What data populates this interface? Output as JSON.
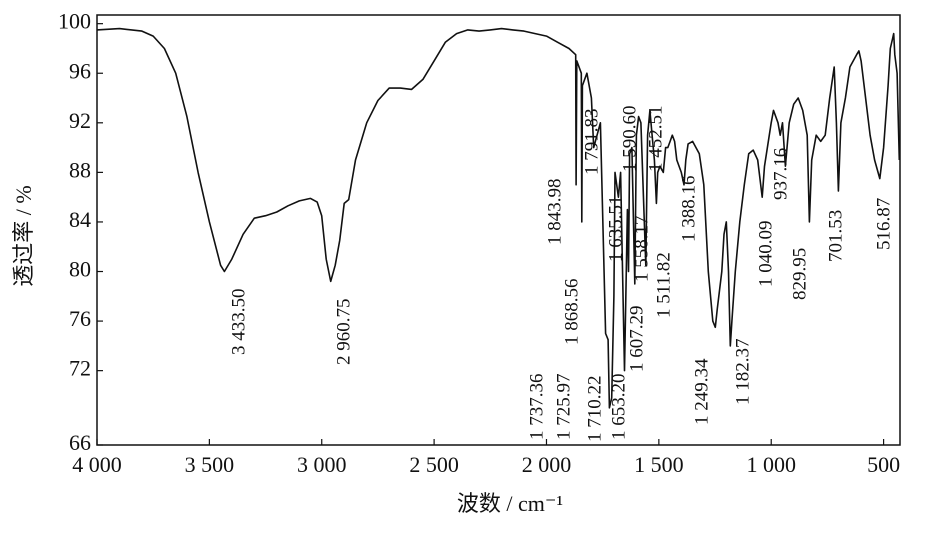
{
  "chart_data": {
    "type": "line",
    "x_label": "波数 / cm⁻¹",
    "y_label": "透过率 / %",
    "xlim": [
      4000,
      427
    ],
    "ylim": [
      66,
      100.7
    ],
    "xticks": [
      {
        "value": 4000,
        "label": "4 000"
      },
      {
        "value": 3500,
        "label": "3 500"
      },
      {
        "value": 3000,
        "label": "3 000"
      },
      {
        "value": 2500,
        "label": "2 500"
      },
      {
        "value": 2000,
        "label": "2 000"
      },
      {
        "value": 1500,
        "label": "1 500"
      },
      {
        "value": 1000,
        "label": "1 000"
      },
      500
    ],
    "yticks": [
      66,
      72,
      76,
      80,
      84,
      88,
      92,
      96,
      100
    ],
    "color": "#111111",
    "x": [
      4000,
      3900,
      3800,
      3750,
      3700,
      3650,
      3600,
      3550,
      3500,
      3450,
      3433,
      3400,
      3350,
      3300,
      3250,
      3200,
      3150,
      3100,
      3050,
      3020,
      3000,
      2980,
      2960,
      2940,
      2920,
      2900,
      2880,
      2850,
      2800,
      2750,
      2700,
      2650,
      2600,
      2550,
      2500,
      2450,
      2400,
      2350,
      2300,
      2250,
      2200,
      2150,
      2100,
      2050,
      2000,
      1950,
      1900,
      1870,
      1868,
      1865,
      1845,
      1843,
      1840,
      1820,
      1800,
      1790,
      1760,
      1737,
      1726,
      1720,
      1710,
      1700,
      1695,
      1680,
      1670,
      1653,
      1640,
      1635,
      1630,
      1620,
      1607,
      1600,
      1590,
      1580,
      1558,
      1550,
      1540,
      1530,
      1520,
      1511,
      1505,
      1495,
      1480,
      1470,
      1460,
      1450,
      1440,
      1430,
      1420,
      1400,
      1388,
      1380,
      1370,
      1350,
      1320,
      1300,
      1280,
      1260,
      1249,
      1240,
      1220,
      1210,
      1200,
      1190,
      1182,
      1175,
      1160,
      1140,
      1120,
      1100,
      1080,
      1060,
      1040,
      1030,
      1000,
      990,
      970,
      960,
      950,
      937,
      920,
      900,
      880,
      860,
      840,
      830,
      820,
      800,
      780,
      760,
      740,
      720,
      710,
      701,
      690,
      670,
      650,
      620,
      610,
      600,
      580,
      560,
      540,
      517,
      500,
      480,
      470,
      460,
      455,
      450,
      440,
      430
    ],
    "values": [
      99.5,
      99.6,
      99.4,
      99.0,
      98.0,
      96,
      92.5,
      88,
      84,
      80.5,
      80,
      81,
      83,
      84.3,
      84.5,
      84.8,
      85.3,
      85.7,
      85.9,
      85.6,
      84.5,
      81,
      79.2,
      80.5,
      82.5,
      85.5,
      85.8,
      89,
      92,
      93.8,
      94.8,
      94.8,
      94.7,
      95.5,
      97,
      98.5,
      99.2,
      99.5,
      99.4,
      99.5,
      99.6,
      99.5,
      99.4,
      99.2,
      99.0,
      98.5,
      98.0,
      97.5,
      87,
      97,
      96,
      84,
      95,
      96,
      94,
      90,
      92,
      75,
      74.5,
      69,
      69.8,
      78,
      88,
      86,
      88,
      72,
      85,
      80,
      89.5,
      90,
      79,
      91,
      92.5,
      92,
      80.5,
      91,
      93,
      91,
      89,
      85.5,
      88,
      88.5,
      88,
      90,
      90,
      90.5,
      91,
      90.5,
      89,
      88,
      87,
      89,
      90.3,
      90.5,
      89.5,
      87,
      80,
      76,
      75.5,
      77,
      80,
      83,
      84,
      80,
      74,
      76,
      80,
      84,
      87,
      89.5,
      89.8,
      89,
      86,
      88.5,
      92,
      93,
      92,
      91,
      92,
      88.5,
      92,
      93.5,
      94,
      93,
      91,
      84,
      89,
      91,
      90.5,
      91,
      94,
      96.5,
      92,
      86.5,
      92,
      94,
      96.5,
      97.5,
      97.8,
      97,
      94,
      91,
      89,
      87.5,
      90,
      95,
      98,
      98.8,
      99.2,
      97.5,
      96,
      89
    ],
    "annotations": [
      "3 433.50",
      "2 960.75",
      "1 843.98",
      "1 868.56",
      "1 791.83",
      "1 737.36",
      "1 725.97",
      "1 710.22",
      "1 653.20",
      "1 635.51",
      "1 607.29",
      "1 590.60",
      "1 558.17",
      "1 511.82",
      "1 452.51",
      "1 388.16",
      "1 249.34",
      "1 182.37",
      "1 040.09",
      "937.16",
      "829.95",
      "701.53",
      "516.87"
    ]
  }
}
